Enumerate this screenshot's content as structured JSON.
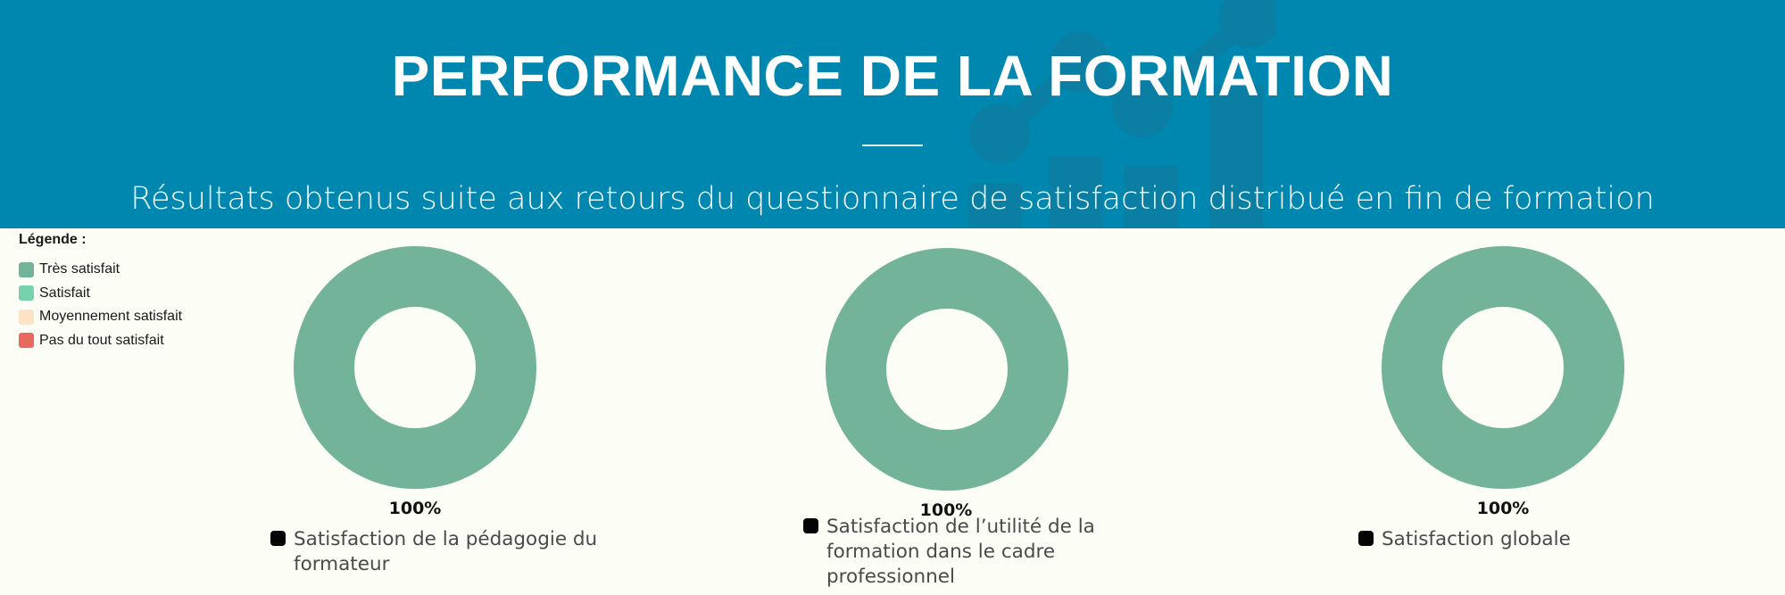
{
  "header": {
    "title": "PERFORMANCE DE LA FORMATION",
    "subtitle": "Résultats obtenus suite aux retours du questionnaire de satisfaction distribué en fin de formation",
    "background_color": "#0087b0",
    "decoration_icon": "analytics-chart-icon"
  },
  "legend": {
    "title": "Légende :",
    "items": [
      {
        "label": "Très satisfait",
        "color": "#72b399"
      },
      {
        "label": "Satisfait",
        "color": "#76d2ad"
      },
      {
        "label": "Moyennement satisfait",
        "color": "#fde3c3"
      },
      {
        "label": "Pas du tout satisfait",
        "color": "#e9695f"
      }
    ]
  },
  "chart_data": [
    {
      "type": "pie",
      "donut": true,
      "categories": [
        "Très satisfait",
        "Satisfait",
        "Moyennement satisfait",
        "Pas du tout satisfait"
      ],
      "values": [
        100,
        0,
        0,
        0
      ],
      "label": "100%",
      "caption": "Satisfaction de la pédagogie du formateur"
    },
    {
      "type": "pie",
      "donut": true,
      "categories": [
        "Très satisfait",
        "Satisfait",
        "Moyennement satisfait",
        "Pas du tout satisfait"
      ],
      "values": [
        100,
        0,
        0,
        0
      ],
      "label": "100%",
      "caption": "Satisfaction de l’utilité de la formation dans le cadre professionnel"
    },
    {
      "type": "pie",
      "donut": true,
      "categories": [
        "Très satisfait",
        "Satisfait",
        "Moyennement satisfait",
        "Pas du tout satisfait"
      ],
      "values": [
        100,
        0,
        0,
        0
      ],
      "label": "100%",
      "caption": "Satisfaction globale"
    }
  ]
}
